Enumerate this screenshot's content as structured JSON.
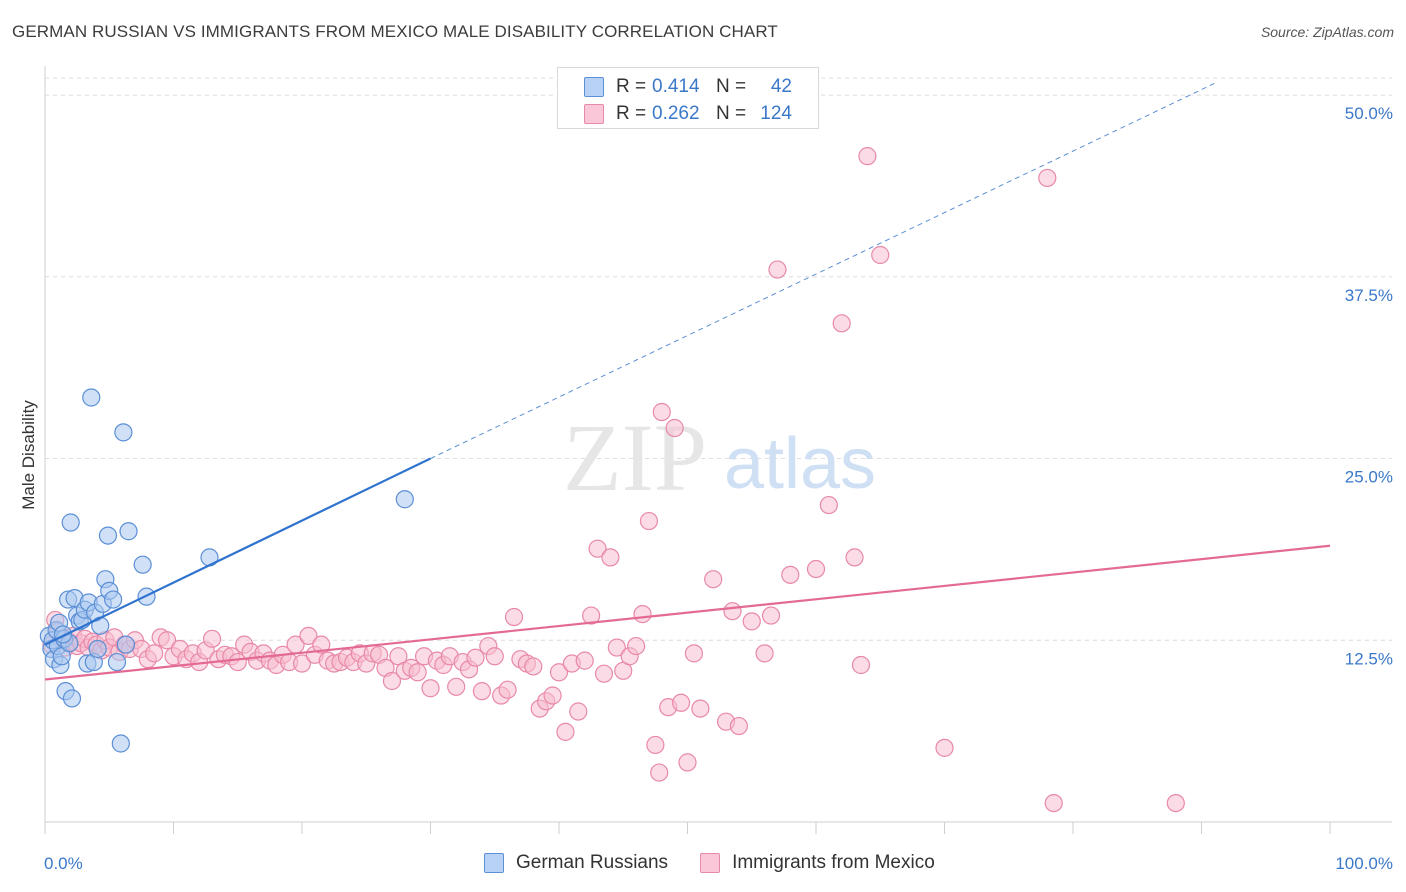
{
  "title": "GERMAN RUSSIAN VS IMMIGRANTS FROM MEXICO MALE DISABILITY CORRELATION CHART",
  "source": "Source: ZipAtlas.com",
  "watermark": {
    "zip": "ZIP",
    "atlas": "atlas"
  },
  "legend": {
    "rows": [
      {
        "r_label": "R =",
        "r_value": "0.414",
        "n_label": "N =",
        "n_value": "42"
      },
      {
        "r_label": "R =",
        "r_value": "0.262",
        "n_label": "N =",
        "n_value": "124"
      }
    ]
  },
  "bottom_legend": [
    "German Russians",
    "Immigrants from Mexico"
  ],
  "colors": {
    "blue_fill": "#a9c8f0",
    "blue_stroke": "#5b8fd6",
    "blue_line": "#2f73cf",
    "pink_fill": "#f7bdd0",
    "pink_stroke": "#e889a8",
    "pink_line": "#e46a96",
    "tick_label": "#3a78c9",
    "grid": "#dcdcdc"
  },
  "chart_data": {
    "type": "scatter",
    "title": "GERMAN RUSSIAN VS IMMIGRANTS FROM MEXICO MALE DISABILITY CORRELATION CHART",
    "xlabel": "",
    "ylabel": "Male Disability",
    "xlim": [
      0,
      100
    ],
    "ylim": [
      0,
      52
    ],
    "x_tick_labels": [
      "0.0%",
      "100.0%"
    ],
    "y_ticks": [
      12.5,
      25.0,
      37.5,
      50.0
    ],
    "y_tick_labels": [
      "12.5%",
      "25.0%",
      "37.5%",
      "50.0%"
    ],
    "series": [
      {
        "name": "German Russians",
        "color": "blue",
        "r": 0.414,
        "n": 42,
        "trend": {
          "x0": 0,
          "y0": 12.2,
          "x1": 30,
          "y1": 25.0,
          "dashed_to_x": 91,
          "dashed_to_y": 50.8
        },
        "points": [
          [
            0.3,
            12.8
          ],
          [
            0.5,
            11.9
          ],
          [
            0.6,
            12.5
          ],
          [
            0.7,
            11.2
          ],
          [
            0.9,
            13.2
          ],
          [
            1.0,
            12.1
          ],
          [
            1.1,
            13.7
          ],
          [
            1.2,
            10.8
          ],
          [
            1.3,
            11.4
          ],
          [
            1.5,
            12.6
          ],
          [
            1.6,
            9.0
          ],
          [
            1.8,
            15.3
          ],
          [
            1.9,
            12.3
          ],
          [
            2.0,
            20.6
          ],
          [
            2.1,
            8.5
          ],
          [
            2.3,
            15.4
          ],
          [
            2.5,
            14.2
          ],
          [
            2.7,
            13.8
          ],
          [
            2.9,
            13.9
          ],
          [
            3.1,
            14.6
          ],
          [
            3.3,
            10.9
          ],
          [
            3.4,
            15.1
          ],
          [
            3.6,
            29.2
          ],
          [
            3.8,
            11.0
          ],
          [
            3.9,
            14.4
          ],
          [
            4.1,
            11.9
          ],
          [
            4.3,
            13.5
          ],
          [
            4.5,
            15.0
          ],
          [
            4.7,
            16.7
          ],
          [
            4.9,
            19.7
          ],
          [
            5.0,
            15.9
          ],
          [
            5.3,
            15.3
          ],
          [
            5.6,
            11.0
          ],
          [
            5.9,
            5.4
          ],
          [
            6.1,
            26.8
          ],
          [
            6.3,
            12.2
          ],
          [
            6.5,
            20.0
          ],
          [
            7.6,
            17.7
          ],
          [
            7.9,
            15.5
          ],
          [
            12.8,
            18.2
          ],
          [
            28.0,
            22.2
          ],
          [
            1.4,
            12.9
          ]
        ]
      },
      {
        "name": "Immigrants from Mexico",
        "color": "pink",
        "r": 0.262,
        "n": 124,
        "trend": {
          "x0": 0,
          "y0": 9.8,
          "x1": 100,
          "y1": 19.0
        },
        "points": [
          [
            0.5,
            12.2
          ],
          [
            0.8,
            13.9
          ],
          [
            1.0,
            13.1
          ],
          [
            1.3,
            12.6
          ],
          [
            1.6,
            12.0
          ],
          [
            1.9,
            12.4
          ],
          [
            2.2,
            12.8
          ],
          [
            2.5,
            12.1
          ],
          [
            2.8,
            12.3
          ],
          [
            3.1,
            12.6
          ],
          [
            3.4,
            12.0
          ],
          [
            3.7,
            12.4
          ],
          [
            4.0,
            12.2
          ],
          [
            4.4,
            11.8
          ],
          [
            4.7,
            12.5
          ],
          [
            5.0,
            12.0
          ],
          [
            5.4,
            12.7
          ],
          [
            5.8,
            11.7
          ],
          [
            6.2,
            12.2
          ],
          [
            6.6,
            11.9
          ],
          [
            7.0,
            12.5
          ],
          [
            7.5,
            11.9
          ],
          [
            8.0,
            11.2
          ],
          [
            8.5,
            11.6
          ],
          [
            9.0,
            12.7
          ],
          [
            9.5,
            12.5
          ],
          [
            10.0,
            11.4
          ],
          [
            10.5,
            11.9
          ],
          [
            11.0,
            11.2
          ],
          [
            11.5,
            11.6
          ],
          [
            12.0,
            11.0
          ],
          [
            12.5,
            11.8
          ],
          [
            13.0,
            12.6
          ],
          [
            13.5,
            11.2
          ],
          [
            14.0,
            11.5
          ],
          [
            14.5,
            11.4
          ],
          [
            15.0,
            11.0
          ],
          [
            15.5,
            12.2
          ],
          [
            16.0,
            11.7
          ],
          [
            16.5,
            11.1
          ],
          [
            17.0,
            11.6
          ],
          [
            17.5,
            11.1
          ],
          [
            18.0,
            10.8
          ],
          [
            18.5,
            11.5
          ],
          [
            19.0,
            11.0
          ],
          [
            19.5,
            12.2
          ],
          [
            20.0,
            10.9
          ],
          [
            20.5,
            12.8
          ],
          [
            21.0,
            11.5
          ],
          [
            21.5,
            12.2
          ],
          [
            22.0,
            11.1
          ],
          [
            22.5,
            10.9
          ],
          [
            23.0,
            11.0
          ],
          [
            23.5,
            11.3
          ],
          [
            24.0,
            11.0
          ],
          [
            24.5,
            11.6
          ],
          [
            25.0,
            10.9
          ],
          [
            25.5,
            11.6
          ],
          [
            26.0,
            11.5
          ],
          [
            26.5,
            10.6
          ],
          [
            27.0,
            9.7
          ],
          [
            27.5,
            11.4
          ],
          [
            28.0,
            10.4
          ],
          [
            28.5,
            10.6
          ],
          [
            29.0,
            10.3
          ],
          [
            29.5,
            11.4
          ],
          [
            30.0,
            9.2
          ],
          [
            30.5,
            11.1
          ],
          [
            31.0,
            10.8
          ],
          [
            31.5,
            11.4
          ],
          [
            32.0,
            9.3
          ],
          [
            32.5,
            11.0
          ],
          [
            33.0,
            10.5
          ],
          [
            33.5,
            11.3
          ],
          [
            34.0,
            9.0
          ],
          [
            34.5,
            12.1
          ],
          [
            35.0,
            11.4
          ],
          [
            35.5,
            8.7
          ],
          [
            36.0,
            9.1
          ],
          [
            36.5,
            14.1
          ],
          [
            37.0,
            11.2
          ],
          [
            37.5,
            10.9
          ],
          [
            38.0,
            10.7
          ],
          [
            38.5,
            7.8
          ],
          [
            39.0,
            8.3
          ],
          [
            39.5,
            8.7
          ],
          [
            40.0,
            10.3
          ],
          [
            40.5,
            6.2
          ],
          [
            41.0,
            10.9
          ],
          [
            41.5,
            7.6
          ],
          [
            42.0,
            11.1
          ],
          [
            42.5,
            14.2
          ],
          [
            43.0,
            18.8
          ],
          [
            43.5,
            10.2
          ],
          [
            44.0,
            18.2
          ],
          [
            44.5,
            12.0
          ],
          [
            45.0,
            10.4
          ],
          [
            45.5,
            11.4
          ],
          [
            46.0,
            12.1
          ],
          [
            46.5,
            14.3
          ],
          [
            47.0,
            20.7
          ],
          [
            47.5,
            5.3
          ],
          [
            47.8,
            3.4
          ],
          [
            48.0,
            28.2
          ],
          [
            48.5,
            7.9
          ],
          [
            49.0,
            27.1
          ],
          [
            49.5,
            8.2
          ],
          [
            50.0,
            4.1
          ],
          [
            50.5,
            11.6
          ],
          [
            51.0,
            7.8
          ],
          [
            52.0,
            16.7
          ],
          [
            53.0,
            6.9
          ],
          [
            53.5,
            14.5
          ],
          [
            54.0,
            6.6
          ],
          [
            55.0,
            13.8
          ],
          [
            56.0,
            11.6
          ],
          [
            56.5,
            14.2
          ],
          [
            57.0,
            38.0
          ],
          [
            58.0,
            17.0
          ],
          [
            60.0,
            17.4
          ],
          [
            61.0,
            21.8
          ],
          [
            62.0,
            34.3
          ],
          [
            63.0,
            18.2
          ],
          [
            63.5,
            10.8
          ],
          [
            64.0,
            45.8
          ],
          [
            65.0,
            39.0
          ],
          [
            70.0,
            5.1
          ],
          [
            78.0,
            44.3
          ],
          [
            78.5,
            1.3
          ],
          [
            88.0,
            1.3
          ]
        ]
      }
    ]
  }
}
